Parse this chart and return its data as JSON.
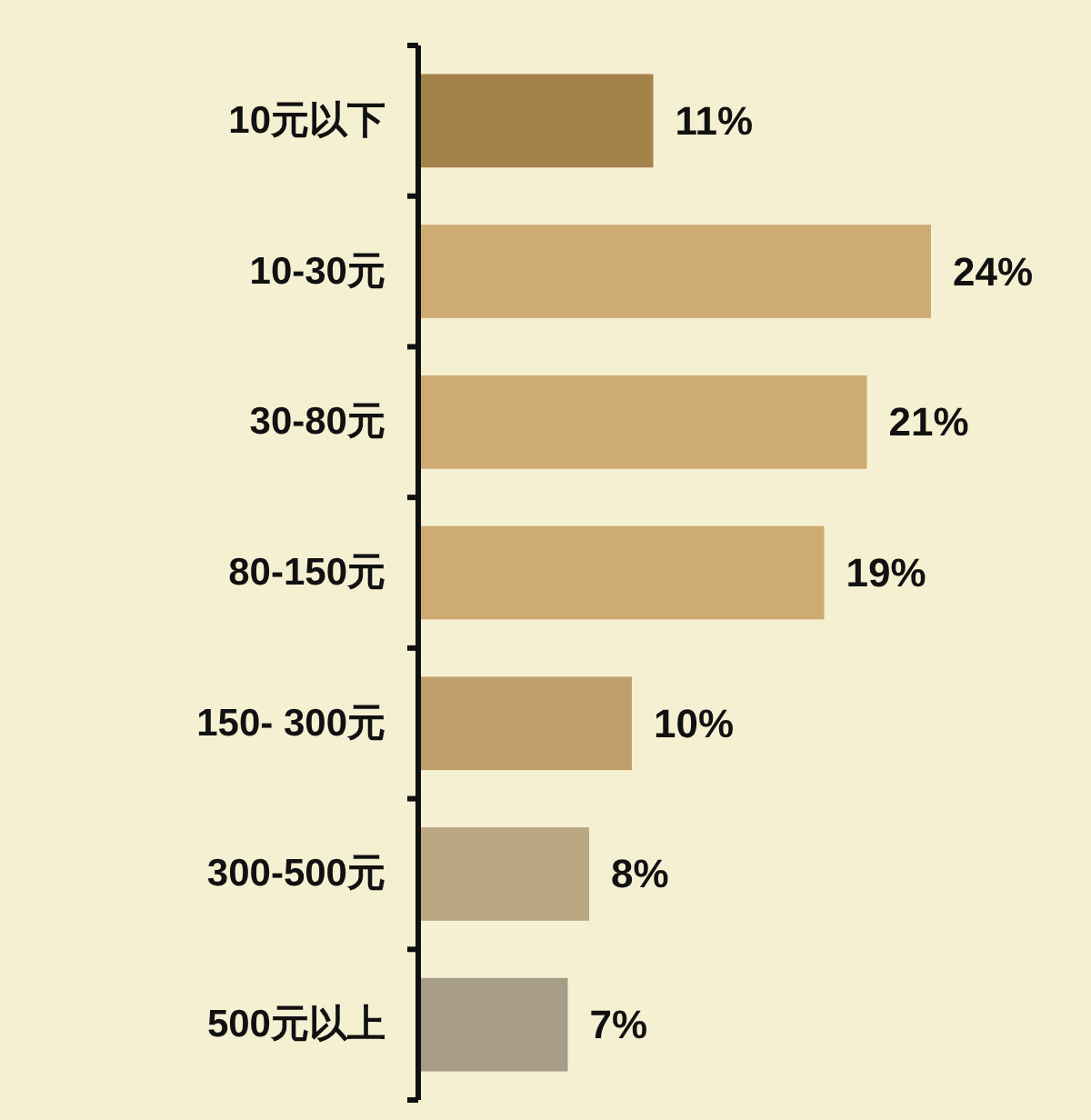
{
  "chart_data": {
    "type": "bar",
    "orientation": "horizontal",
    "categories": [
      "10元以下",
      "10-30元",
      "30-80元",
      "80-150元",
      "150- 300元",
      "300-500元",
      "500元以上"
    ],
    "values": [
      11,
      24,
      21,
      19,
      10,
      8,
      7
    ],
    "colors": [
      "#a4834b",
      "#cdab72",
      "#cdab72",
      "#cdab72",
      "#bfa06d",
      "#bca783",
      "#a69c88"
    ],
    "value_labels": [
      "11%",
      "24%",
      "21%",
      "19%",
      "10%",
      "8%",
      "7%"
    ]
  }
}
